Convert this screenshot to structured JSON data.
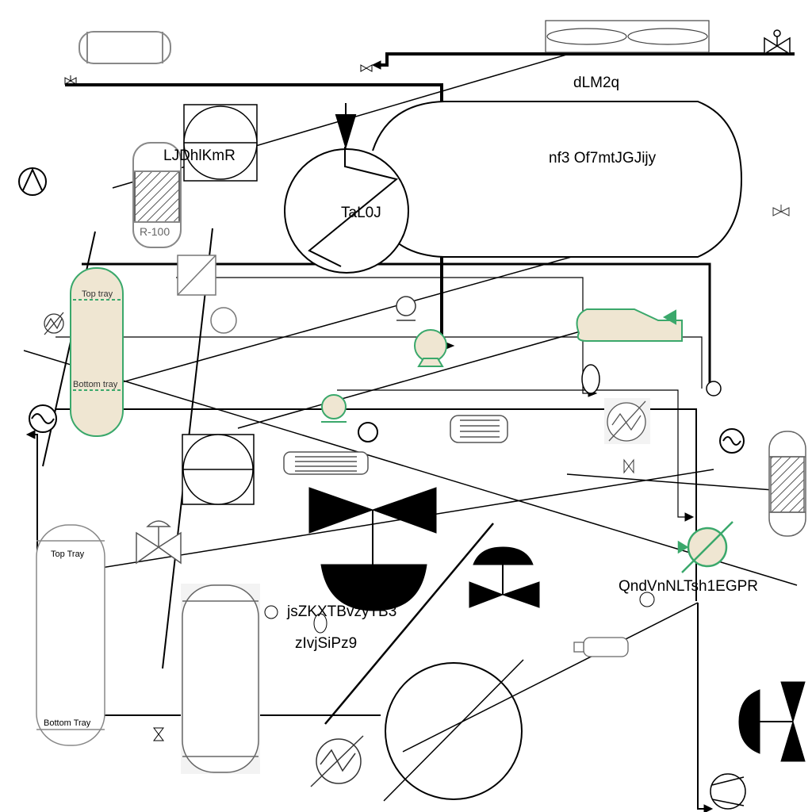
{
  "labels": {
    "dlm2q": "dLM2q",
    "ljdh": "LJDhlKmR",
    "nf3": "nf3 Of7mtJGJijy",
    "tal0j": "TaL0J",
    "qnd": "QndVnNLTsh1EGPR",
    "jsz": "jsZKXTBvzyTB3",
    "zlv": "zIvjSiPz9"
  },
  "equipment_tags": {
    "reactor": "R-100",
    "top_tray_green": "Top tray",
    "bottom_tray_green": "Bottom tray",
    "top_tray_left": "Top Tray",
    "bottom_tray_left": "Bottom Tray"
  },
  "colors": {
    "green": "#3aa86b",
    "fill_beige": "#efe6d2",
    "line": "#000000"
  }
}
